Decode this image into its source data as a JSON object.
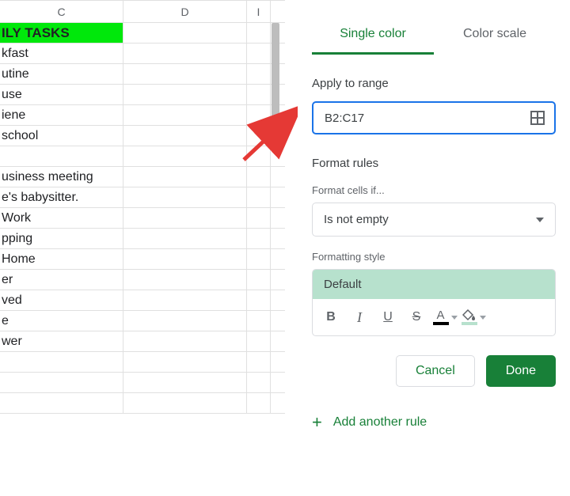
{
  "columns": {
    "c": "C",
    "d": "D",
    "e": "I"
  },
  "rows": [
    {
      "text": "ILY TASKS",
      "bg": "#00e80b",
      "header": true
    },
    {
      "text": "kfast"
    },
    {
      "text": "utine"
    },
    {
      "text": "use"
    },
    {
      "text": "iene"
    },
    {
      "text": " school"
    },
    {
      "text": ""
    },
    {
      "text": "usiness meeting"
    },
    {
      "text": "e's babysitter."
    },
    {
      "text": "Work"
    },
    {
      "text": "pping"
    },
    {
      "text": " Home"
    },
    {
      "text": "er"
    },
    {
      "text": "ved"
    },
    {
      "text": "e"
    },
    {
      "text": "wer"
    },
    {
      "text": ""
    },
    {
      "text": ""
    },
    {
      "text": ""
    }
  ],
  "tabs": {
    "single": "Single color",
    "scale": "Color scale"
  },
  "labels": {
    "apply_range": "Apply to range",
    "format_rules": "Format rules",
    "format_cells_if": "Format cells if...",
    "formatting_style": "Formatting style"
  },
  "range_value": "B2:C17",
  "condition_value": "Is not empty",
  "default_label": "Default",
  "default_bg": "#b7e1cd",
  "fill_underline_color": "#b7e1cd",
  "buttons": {
    "cancel": "Cancel",
    "done": "Done",
    "add": "Add another rule"
  },
  "colors": {
    "arrow": "#e53935",
    "accent": "#188038",
    "input_border": "#1a73e8"
  }
}
